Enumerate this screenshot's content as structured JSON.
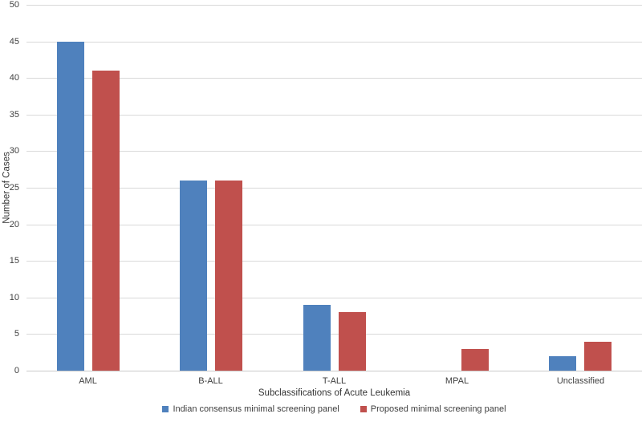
{
  "figure": {
    "x_axis_title": "Subclassifications of Acute Leukemia",
    "y_axis_title": "Number of Cases"
  },
  "chart_data": {
    "type": "bar",
    "title": "",
    "categories": [
      "AML",
      "B-ALL",
      "T-ALL",
      "MPAL",
      "Unclassified"
    ],
    "series": [
      {
        "name": "Indian consensus minimal screening panel",
        "color": "#4F81BD",
        "values": [
          45,
          26,
          9,
          0,
          2
        ]
      },
      {
        "name": "Proposed minimal screening panel",
        "color": "#C0504D",
        "values": [
          41,
          26,
          8,
          3,
          4
        ]
      }
    ],
    "xlabel": "Subclassifications of Acute Leukemia",
    "ylabel": "Number of Cases",
    "ylim": [
      0,
      50
    ],
    "yticks": [
      0,
      5,
      10,
      15,
      20,
      25,
      30,
      35,
      40,
      45,
      50
    ],
    "grid": true,
    "gridline_color": "#D9D9D9",
    "axis_line_color": "#C9C9C9",
    "legend_position": "bottom"
  }
}
